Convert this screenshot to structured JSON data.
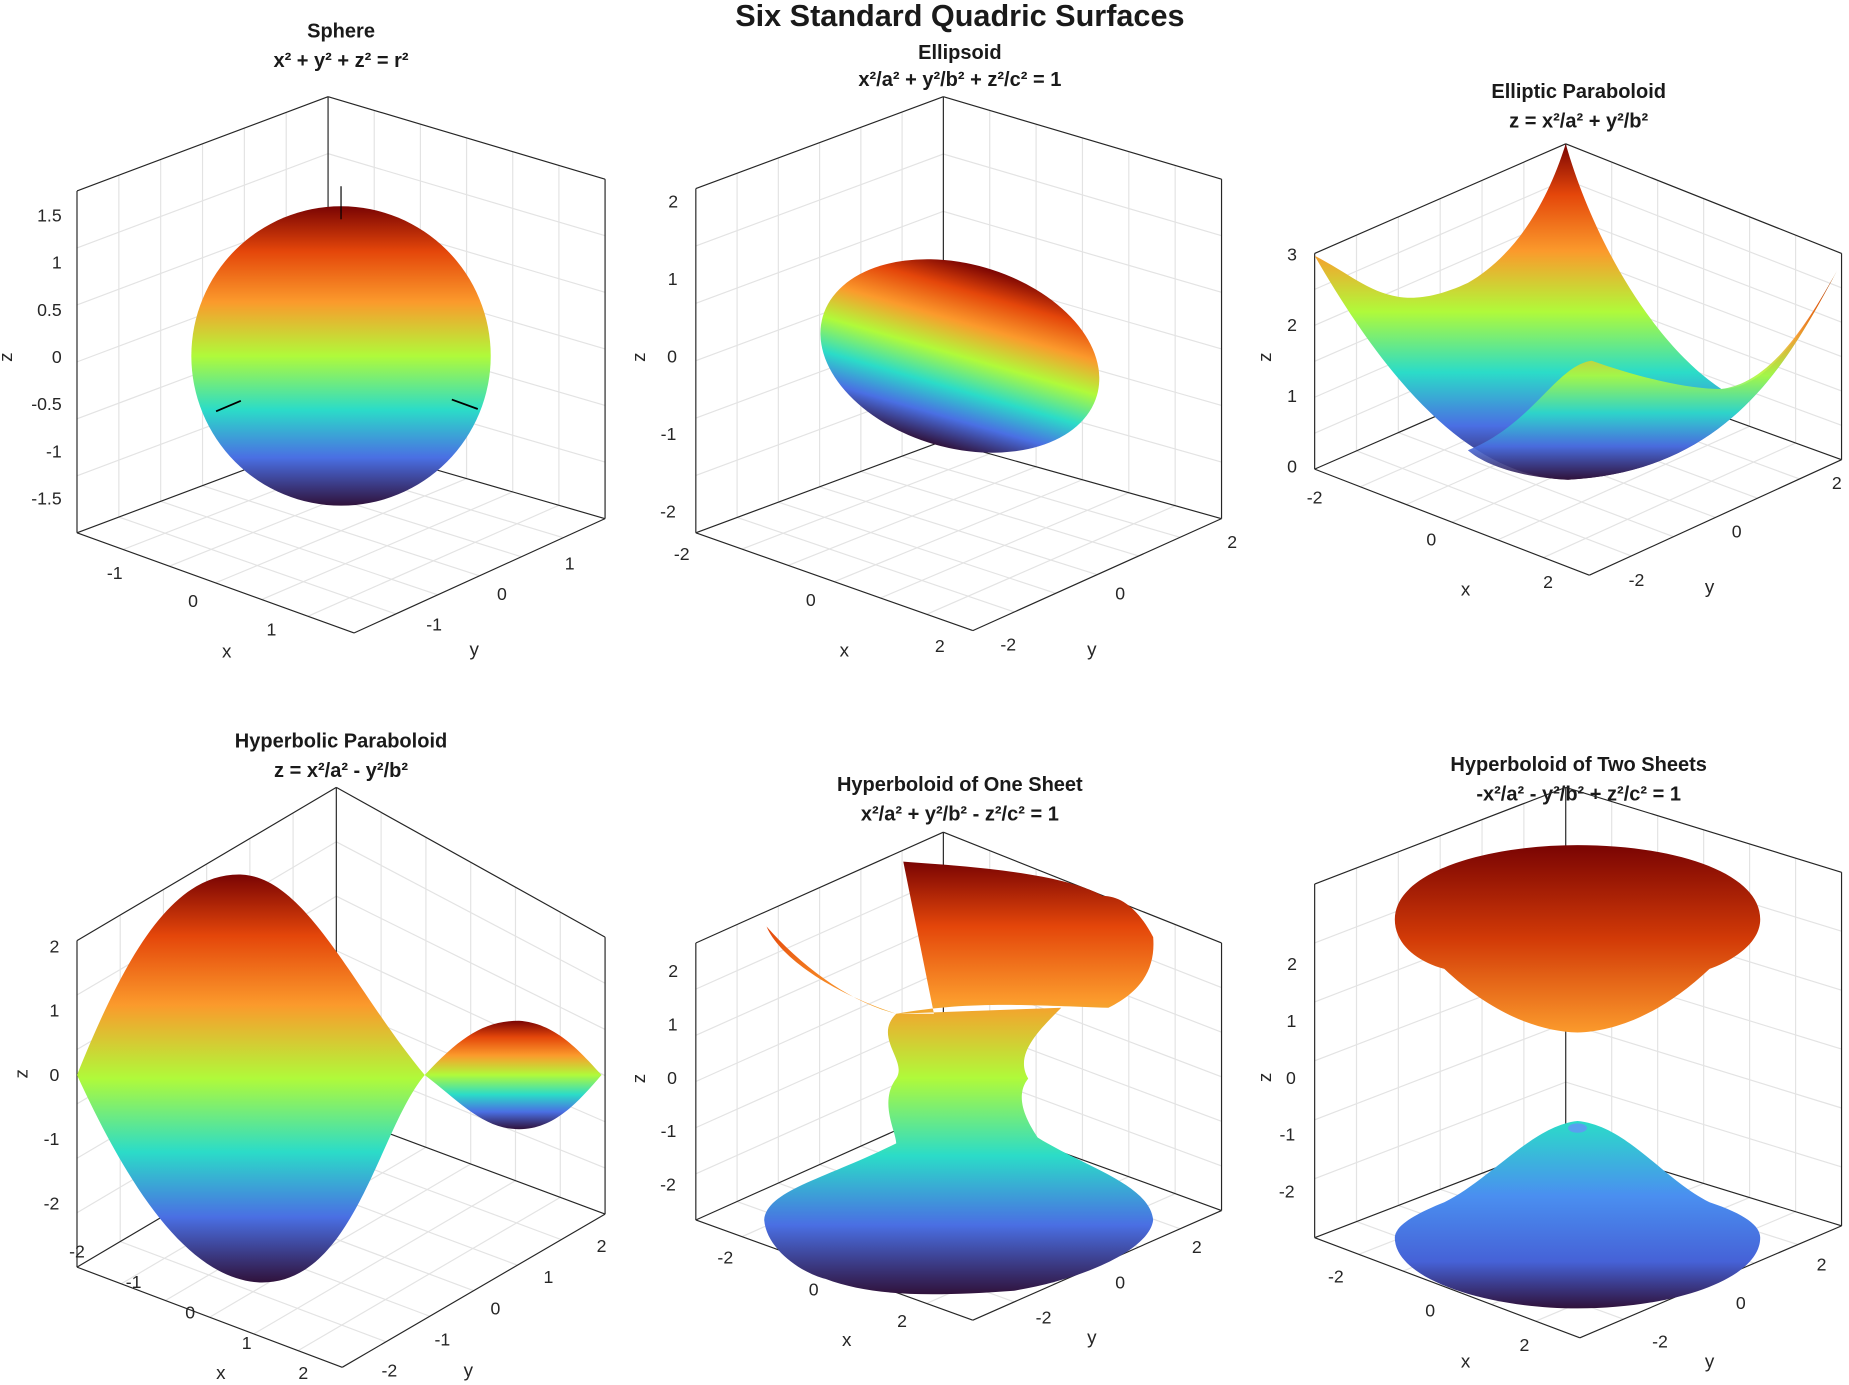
{
  "figure_title": "Six Standard Quadric Surfaces",
  "colormap": [
    "#30123b",
    "#4662d7",
    "#28bceb",
    "#32f298",
    "#a4fc3c",
    "#f9ba38",
    "#e4460a",
    "#7a0403"
  ],
  "chart_data": [
    {
      "type": "surface",
      "title": "Sphere",
      "equation": "x² + y² + z² = r²",
      "xlabel": "x",
      "ylabel": "y",
      "zlabel": "z",
      "xticks": [
        "-1",
        "0",
        "1"
      ],
      "yticks": [
        "-1",
        "0",
        "1"
      ],
      "zticks": [
        "1.5",
        "1",
        "0.5",
        "0",
        "-0.5",
        "-1",
        "-1.5"
      ],
      "xlim": [
        -1.7,
        1.7
      ],
      "ylim": [
        -1.7,
        1.7
      ],
      "zlim": [
        -1.8,
        1.8
      ],
      "grid": true
    },
    {
      "type": "surface",
      "title": "Ellipsoid",
      "equation": "x²/a² + y²/b² + z²/c² = 1",
      "xlabel": "x",
      "ylabel": "y",
      "zlabel": "z",
      "xticks": [
        "-2",
        "0",
        "2"
      ],
      "yticks": [
        "-2",
        "0",
        "2"
      ],
      "zticks": [
        "2",
        "1",
        "0",
        "-1",
        "-2"
      ],
      "xlim": [
        -2.5,
        2.5
      ],
      "ylim": [
        -2.5,
        2.5
      ],
      "zlim": [
        -2.5,
        2.5
      ],
      "grid": true
    },
    {
      "type": "surface",
      "title": "Elliptic Paraboloid",
      "equation": "z = x²/a² + y²/b²",
      "xlabel": "x",
      "ylabel": "y",
      "zlabel": "z",
      "xticks": [
        "-2",
        "0",
        "2"
      ],
      "yticks": [
        "-2",
        "0",
        "2"
      ],
      "zticks": [
        "3",
        "2",
        "1",
        "0"
      ],
      "xlim": [
        -2,
        2
      ],
      "ylim": [
        -2,
        2
      ],
      "zlim": [
        0,
        3
      ],
      "grid": true
    },
    {
      "type": "surface",
      "title": "Hyperbolic Paraboloid",
      "equation": "z = x²/a² - y²/b²",
      "xlabel": "x",
      "ylabel": "y",
      "zlabel": "z",
      "xticks": [
        "-2",
        "-1",
        "0",
        "1",
        "2"
      ],
      "yticks": [
        "-2",
        "-1",
        "0",
        "1",
        "2"
      ],
      "zticks": [
        "2",
        "1",
        "0",
        "-1",
        "-2"
      ],
      "xlim": [
        -2,
        2
      ],
      "ylim": [
        -2,
        2
      ],
      "zlim": [
        -2.2,
        2.2
      ],
      "grid": true
    },
    {
      "type": "surface",
      "title": "Hyperboloid of One Sheet",
      "equation": "x²/a² + y²/b² - z²/c² = 1",
      "xlabel": "x",
      "ylabel": "y",
      "zlabel": "z",
      "xticks": [
        "-2",
        "0",
        "2"
      ],
      "yticks": [
        "-2",
        "0",
        "2"
      ],
      "zticks": [
        "2",
        "1",
        "0",
        "-1",
        "-2"
      ],
      "xlim": [
        -3,
        3
      ],
      "ylim": [
        -3,
        3
      ],
      "zlim": [
        -2.5,
        2.5
      ],
      "grid": true
    },
    {
      "type": "surface",
      "title": "Hyperboloid of Two Sheets",
      "equation": "-x²/a² - y²/b² + z²/c² = 1",
      "xlabel": "x",
      "ylabel": "y",
      "zlabel": "z",
      "xticks": [
        "-2",
        "0",
        "2"
      ],
      "yticks": [
        "-2",
        "0",
        "2"
      ],
      "zticks": [
        "2",
        "1",
        "0",
        "-1",
        "-2"
      ],
      "xlim": [
        -3,
        3
      ],
      "ylim": [
        -3,
        3
      ],
      "zlim": [
        -2.8,
        2.8
      ],
      "grid": true
    }
  ]
}
